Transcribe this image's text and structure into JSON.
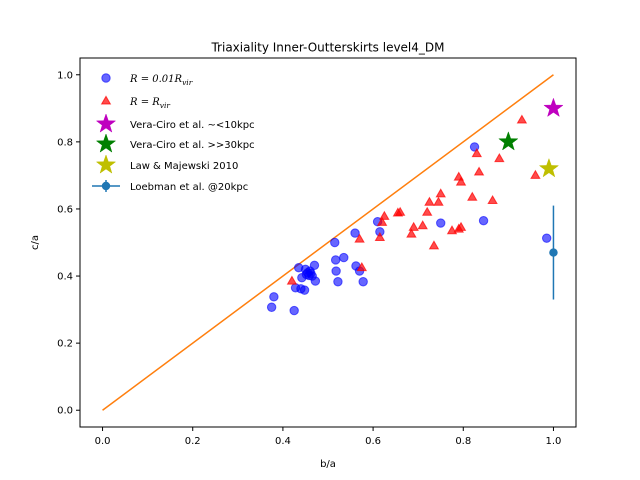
{
  "chart_data": {
    "type": "scatter",
    "title": "Triaxiality Inner-Outterskirts level4_DM",
    "xlabel": "b/a",
    "ylabel": "c/a",
    "xlim": [
      -0.05,
      1.05
    ],
    "ylim": [
      -0.05,
      1.05
    ],
    "xticks": [
      "0.0",
      "0.2",
      "0.4",
      "0.6",
      "0.8",
      "1.0"
    ],
    "yticks": [
      "0.0",
      "0.2",
      "0.4",
      "0.6",
      "0.8",
      "1.0"
    ],
    "grid": false,
    "legend_position": "top-left",
    "colors": {
      "inner": "#0000ff",
      "outer": "#ff0000",
      "line": "#ff7f0e",
      "vera10": "#bf00bf",
      "vera30": "#008000",
      "law": "#bfbf00",
      "loebman": "#1f77b4"
    },
    "series": [
      {
        "name_parts": [
          "R = 0.01R",
          "vir"
        ],
        "marker": "circle",
        "points": [
          [
            0.375,
            0.307
          ],
          [
            0.38,
            0.338
          ],
          [
            0.425,
            0.297
          ],
          [
            0.428,
            0.365
          ],
          [
            0.435,
            0.425
          ],
          [
            0.44,
            0.362
          ],
          [
            0.442,
            0.395
          ],
          [
            0.448,
            0.358
          ],
          [
            0.45,
            0.42
          ],
          [
            0.452,
            0.405
          ],
          [
            0.455,
            0.41
          ],
          [
            0.458,
            0.402
          ],
          [
            0.46,
            0.415
          ],
          [
            0.462,
            0.408
          ],
          [
            0.465,
            0.4
          ],
          [
            0.47,
            0.432
          ],
          [
            0.472,
            0.385
          ],
          [
            0.515,
            0.5
          ],
          [
            0.517,
            0.448
          ],
          [
            0.518,
            0.415
          ],
          [
            0.522,
            0.383
          ],
          [
            0.535,
            0.455
          ],
          [
            0.56,
            0.528
          ],
          [
            0.562,
            0.43
          ],
          [
            0.57,
            0.415
          ],
          [
            0.578,
            0.383
          ],
          [
            0.61,
            0.562
          ],
          [
            0.615,
            0.532
          ],
          [
            0.75,
            0.558
          ],
          [
            0.825,
            0.785
          ],
          [
            0.845,
            0.565
          ],
          [
            0.985,
            0.513
          ]
        ]
      },
      {
        "name_parts": [
          "R = R",
          "vir"
        ],
        "marker": "triangle",
        "points": [
          [
            0.42,
            0.385
          ],
          [
            0.57,
            0.51
          ],
          [
            0.575,
            0.425
          ],
          [
            0.615,
            0.515
          ],
          [
            0.62,
            0.56
          ],
          [
            0.625,
            0.578
          ],
          [
            0.655,
            0.588
          ],
          [
            0.66,
            0.59
          ],
          [
            0.685,
            0.525
          ],
          [
            0.69,
            0.545
          ],
          [
            0.71,
            0.55
          ],
          [
            0.72,
            0.59
          ],
          [
            0.725,
            0.62
          ],
          [
            0.735,
            0.49
          ],
          [
            0.745,
            0.62
          ],
          [
            0.75,
            0.645
          ],
          [
            0.775,
            0.535
          ],
          [
            0.79,
            0.54
          ],
          [
            0.79,
            0.695
          ],
          [
            0.795,
            0.68
          ],
          [
            0.795,
            0.545
          ],
          [
            0.82,
            0.635
          ],
          [
            0.83,
            0.765
          ],
          [
            0.835,
            0.71
          ],
          [
            0.865,
            0.625
          ],
          [
            0.88,
            0.75
          ],
          [
            0.93,
            0.865
          ],
          [
            0.96,
            0.7
          ]
        ]
      }
    ],
    "reference_points": [
      {
        "name": "Vera-Ciro et al. ~<10kpc",
        "x": 1.0,
        "y": 0.9,
        "marker": "star"
      },
      {
        "name": "Vera-Ciro et al. >>30kpc",
        "x": 0.9,
        "y": 0.8,
        "marker": "star"
      },
      {
        "name": "Law & Majewski 2010",
        "x": 0.99,
        "y": 0.72,
        "marker": "star"
      }
    ],
    "errorbar": {
      "name": "Loebman et al. @20kpc",
      "x": 1.0,
      "y": 0.47,
      "yerr": 0.14
    },
    "line": {
      "x": [
        0.0,
        1.0
      ],
      "y": [
        0.0,
        1.0
      ]
    }
  }
}
